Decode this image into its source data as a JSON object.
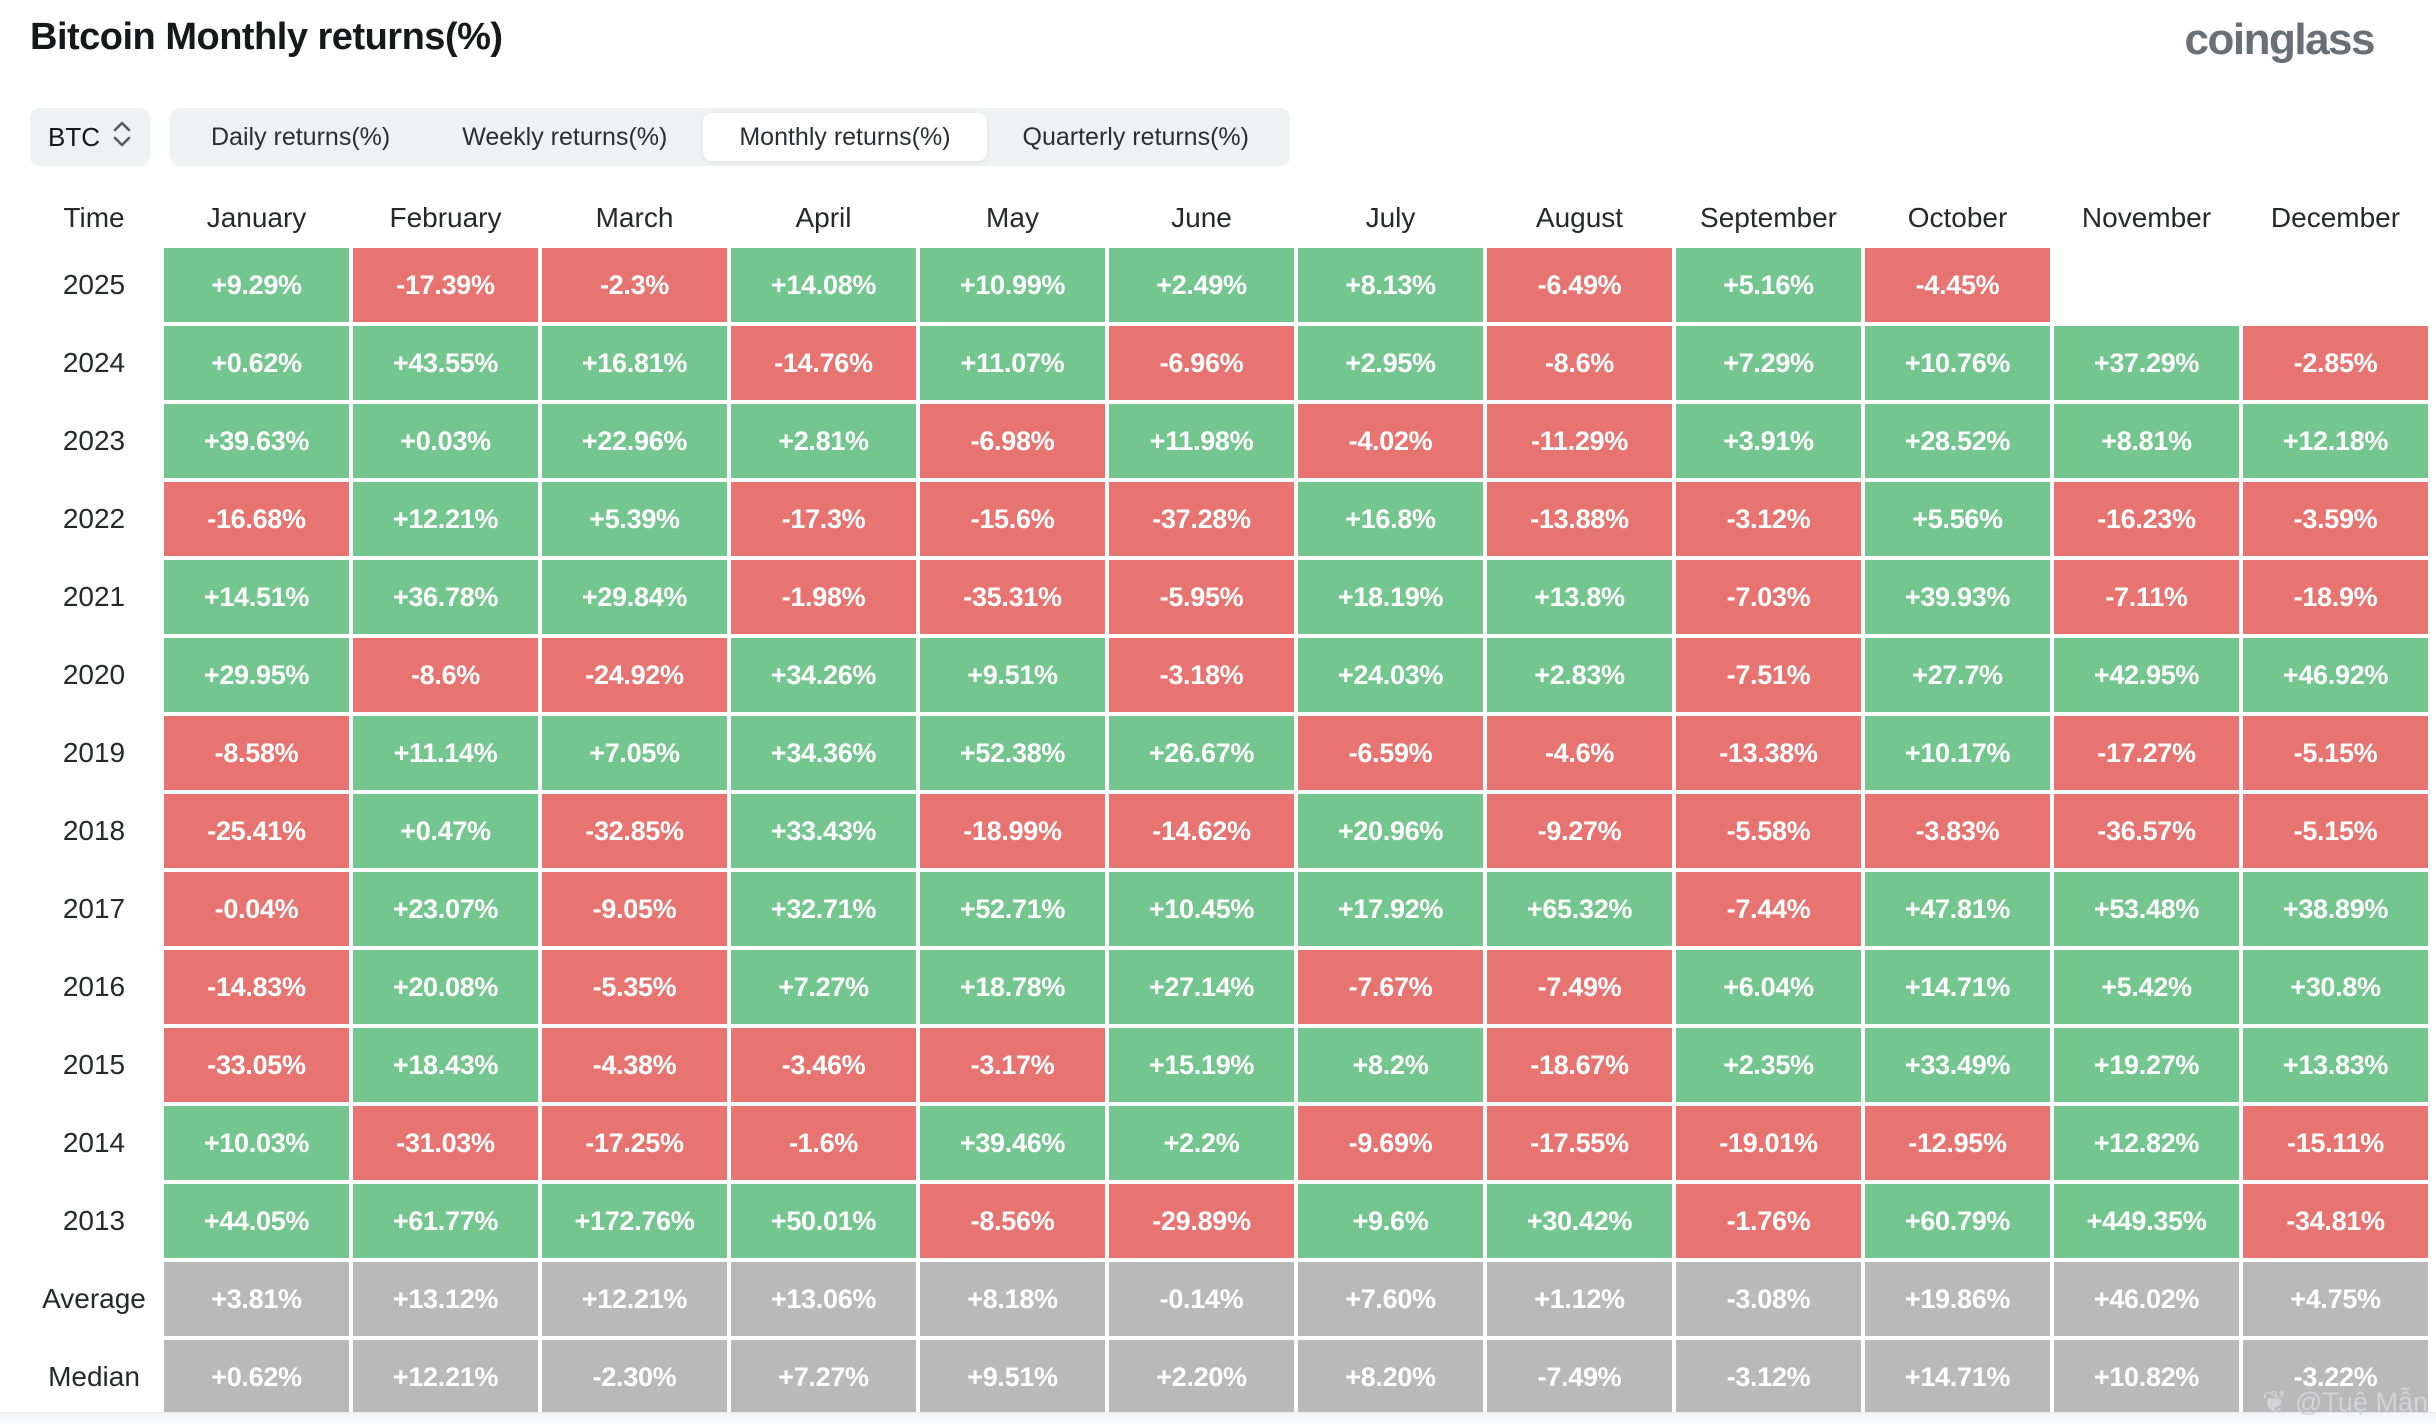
{
  "page": {
    "title": "Bitcoin Monthly returns(%)",
    "logo": "coinglass",
    "watermark": "@Tuệ Mẫn"
  },
  "controls": {
    "symbol": "BTC",
    "tabs": [
      "Daily returns(%)",
      "Weekly returns(%)",
      "Monthly returns(%)",
      "Quarterly returns(%)"
    ],
    "active_tab": "Monthly returns(%)"
  },
  "colors": {
    "positive": "#74c68f",
    "negative": "#e77470",
    "neutral": "#b9b9ba"
  },
  "chart_data": {
    "type": "heatmap",
    "title": "Bitcoin Monthly returns(%)",
    "time_label": "Time",
    "columns": [
      "January",
      "February",
      "March",
      "April",
      "May",
      "June",
      "July",
      "August",
      "September",
      "October",
      "November",
      "December"
    ],
    "legend": {
      "positive": "green",
      "negative": "red",
      "aggregate_rows": "gray"
    },
    "rows": [
      {
        "label": "2025",
        "values": [
          "+9.29%",
          "-17.39%",
          "-2.3%",
          "+14.08%",
          "+10.99%",
          "+2.49%",
          "+8.13%",
          "-6.49%",
          "+5.16%",
          "-4.45%",
          null,
          null
        ]
      },
      {
        "label": "2024",
        "values": [
          "+0.62%",
          "+43.55%",
          "+16.81%",
          "-14.76%",
          "+11.07%",
          "-6.96%",
          "+2.95%",
          "-8.6%",
          "+7.29%",
          "+10.76%",
          "+37.29%",
          "-2.85%"
        ]
      },
      {
        "label": "2023",
        "values": [
          "+39.63%",
          "+0.03%",
          "+22.96%",
          "+2.81%",
          "-6.98%",
          "+11.98%",
          "-4.02%",
          "-11.29%",
          "+3.91%",
          "+28.52%",
          "+8.81%",
          "+12.18%"
        ]
      },
      {
        "label": "2022",
        "values": [
          "-16.68%",
          "+12.21%",
          "+5.39%",
          "-17.3%",
          "-15.6%",
          "-37.28%",
          "+16.8%",
          "-13.88%",
          "-3.12%",
          "+5.56%",
          "-16.23%",
          "-3.59%"
        ]
      },
      {
        "label": "2021",
        "values": [
          "+14.51%",
          "+36.78%",
          "+29.84%",
          "-1.98%",
          "-35.31%",
          "-5.95%",
          "+18.19%",
          "+13.8%",
          "-7.03%",
          "+39.93%",
          "-7.11%",
          "-18.9%"
        ]
      },
      {
        "label": "2020",
        "values": [
          "+29.95%",
          "-8.6%",
          "-24.92%",
          "+34.26%",
          "+9.51%",
          "-3.18%",
          "+24.03%",
          "+2.83%",
          "-7.51%",
          "+27.7%",
          "+42.95%",
          "+46.92%"
        ]
      },
      {
        "label": "2019",
        "values": [
          "-8.58%",
          "+11.14%",
          "+7.05%",
          "+34.36%",
          "+52.38%",
          "+26.67%",
          "-6.59%",
          "-4.6%",
          "-13.38%",
          "+10.17%",
          "-17.27%",
          "-5.15%"
        ]
      },
      {
        "label": "2018",
        "values": [
          "-25.41%",
          "+0.47%",
          "-32.85%",
          "+33.43%",
          "-18.99%",
          "-14.62%",
          "+20.96%",
          "-9.27%",
          "-5.58%",
          "-3.83%",
          "-36.57%",
          "-5.15%"
        ]
      },
      {
        "label": "2017",
        "values": [
          "-0.04%",
          "+23.07%",
          "-9.05%",
          "+32.71%",
          "+52.71%",
          "+10.45%",
          "+17.92%",
          "+65.32%",
          "-7.44%",
          "+47.81%",
          "+53.48%",
          "+38.89%"
        ]
      },
      {
        "label": "2016",
        "values": [
          "-14.83%",
          "+20.08%",
          "-5.35%",
          "+7.27%",
          "+18.78%",
          "+27.14%",
          "-7.67%",
          "-7.49%",
          "+6.04%",
          "+14.71%",
          "+5.42%",
          "+30.8%"
        ]
      },
      {
        "label": "2015",
        "values": [
          "-33.05%",
          "+18.43%",
          "-4.38%",
          "-3.46%",
          "-3.17%",
          "+15.19%",
          "+8.2%",
          "-18.67%",
          "+2.35%",
          "+33.49%",
          "+19.27%",
          "+13.83%"
        ]
      },
      {
        "label": "2014",
        "values": [
          "+10.03%",
          "-31.03%",
          "-17.25%",
          "-1.6%",
          "+39.46%",
          "+2.2%",
          "-9.69%",
          "-17.55%",
          "-19.01%",
          "-12.95%",
          "+12.82%",
          "-15.11%"
        ]
      },
      {
        "label": "2013",
        "values": [
          "+44.05%",
          "+61.77%",
          "+172.76%",
          "+50.01%",
          "-8.56%",
          "-29.89%",
          "+9.6%",
          "+30.42%",
          "-1.76%",
          "+60.79%",
          "+449.35%",
          "-34.81%"
        ]
      },
      {
        "label": "Average",
        "kind": "stat",
        "values": [
          "+3.81%",
          "+13.12%",
          "+12.21%",
          "+13.06%",
          "+8.18%",
          "-0.14%",
          "+7.60%",
          "+1.12%",
          "-3.08%",
          "+19.86%",
          "+46.02%",
          "+4.75%"
        ]
      },
      {
        "label": "Median",
        "kind": "stat",
        "values": [
          "+0.62%",
          "+12.21%",
          "-2.30%",
          "+7.27%",
          "+9.51%",
          "+2.20%",
          "+8.20%",
          "-7.49%",
          "-3.12%",
          "+14.71%",
          "+10.82%",
          "-3.22%"
        ]
      }
    ]
  }
}
